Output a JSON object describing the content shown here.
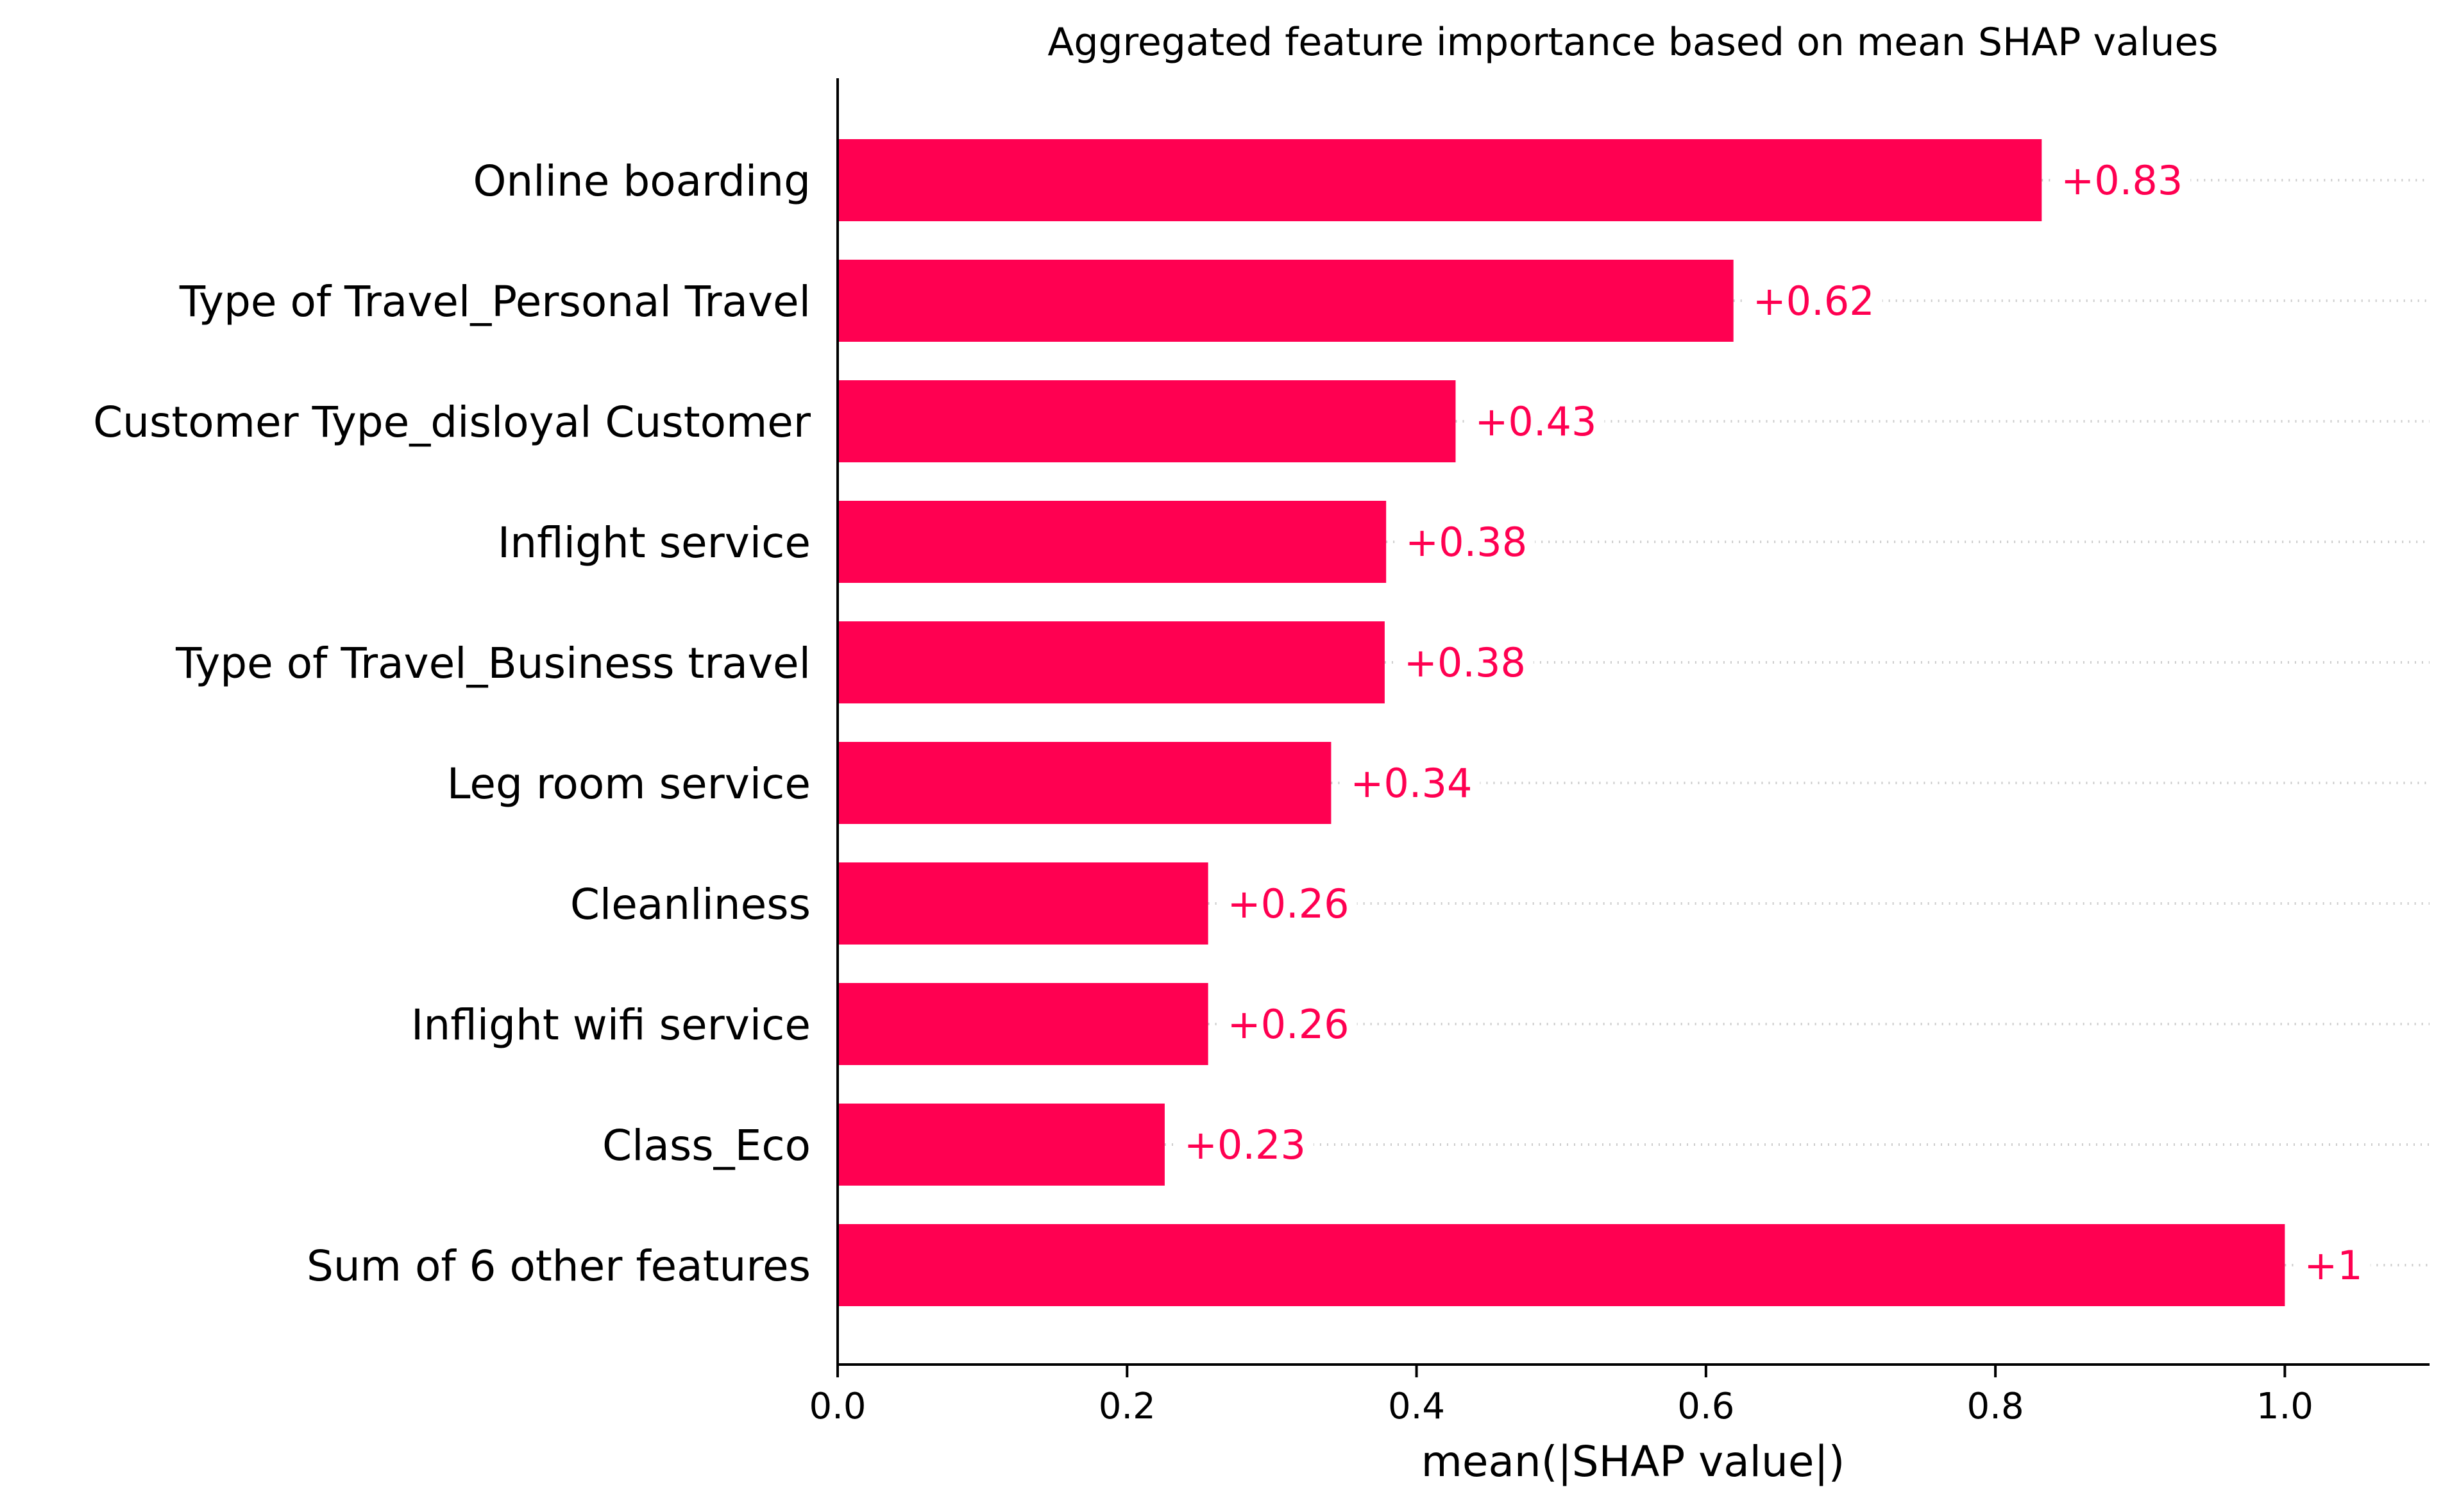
{
  "chart_data": {
    "type": "bar",
    "orientation": "horizontal",
    "title": "Aggregated feature importance based on mean SHAP values",
    "xlabel": "mean(|SHAP value|)",
    "ylabel": "",
    "categories": [
      "Online boarding",
      "Type of Travel_Personal Travel",
      "Customer Type_disloyal Customer",
      "Inflight service",
      "Type of Travel_Business travel",
      "Leg room service",
      "Cleanliness",
      "Inflight wifi service",
      "Class_Eco",
      "Sum of 6 other features"
    ],
    "values": [
      0.832,
      0.619,
      0.427,
      0.379,
      0.378,
      0.341,
      0.256,
      0.256,
      0.226,
      1.0
    ],
    "value_labels": [
      "+0.83",
      "+0.62",
      "+0.43",
      "+0.38",
      "+0.38",
      "+0.34",
      "+0.26",
      "+0.26",
      "+0.23",
      "+1"
    ],
    "xlim": [
      0,
      1.1
    ],
    "xticks": [
      0.0,
      0.2,
      0.4,
      0.6,
      0.8,
      1.0
    ],
    "xtick_labels": [
      "0.0",
      "0.2",
      "0.4",
      "0.6",
      "0.8",
      "1.0"
    ],
    "bar_color": "#ff0051",
    "grid": false,
    "legend": "none"
  }
}
